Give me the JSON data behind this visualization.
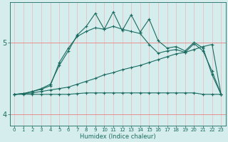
{
  "xlabel": "Humidex (Indice chaleur)",
  "xlim": [
    -0.5,
    23.5
  ],
  "ylim": [
    3.85,
    5.55
  ],
  "yticks": [
    4,
    5
  ],
  "xticks": [
    0,
    1,
    2,
    3,
    4,
    5,
    6,
    7,
    8,
    9,
    10,
    11,
    12,
    13,
    14,
    15,
    16,
    17,
    18,
    19,
    20,
    21,
    22,
    23
  ],
  "bg_color": "#d6eded",
  "line_color": "#1a6b60",
  "series": {
    "line_flat1_x": [
      0,
      1,
      2,
      3,
      4,
      5,
      6,
      7,
      8,
      9,
      10,
      11,
      12,
      13,
      14,
      15,
      16,
      17,
      18,
      19,
      20,
      21,
      22,
      23
    ],
    "line_flat1_y": [
      4.28,
      4.28,
      4.28,
      4.28,
      4.28,
      4.28,
      4.28,
      4.29,
      4.3,
      4.3,
      4.3,
      4.3,
      4.3,
      4.3,
      4.3,
      4.3,
      4.3,
      4.3,
      4.3,
      4.3,
      4.3,
      4.28,
      4.28,
      4.28
    ],
    "line_flat2_x": [
      0,
      1,
      2,
      3,
      4,
      5,
      6,
      7,
      8,
      9,
      10,
      11,
      12,
      13,
      14,
      15,
      16,
      17,
      18,
      19,
      20,
      21,
      22,
      23
    ],
    "line_flat2_y": [
      4.28,
      4.29,
      4.3,
      4.32,
      4.34,
      4.36,
      4.38,
      4.42,
      4.46,
      4.5,
      4.55,
      4.58,
      4.62,
      4.65,
      4.68,
      4.72,
      4.76,
      4.8,
      4.84,
      4.86,
      4.9,
      4.94,
      4.97,
      4.28
    ],
    "line_mid_x": [
      0,
      1,
      2,
      3,
      4,
      5,
      6,
      7,
      8,
      9,
      10,
      11,
      12,
      13,
      14,
      15,
      16,
      17,
      18,
      19,
      20,
      21,
      22,
      23
    ],
    "line_mid_y": [
      4.28,
      4.29,
      4.32,
      4.35,
      4.4,
      4.72,
      4.92,
      5.08,
      5.15,
      5.2,
      5.18,
      5.22,
      5.18,
      5.15,
      5.12,
      4.97,
      4.85,
      4.88,
      4.9,
      4.86,
      4.98,
      4.88,
      4.6,
      4.28
    ],
    "line_spike_x": [
      0,
      1,
      2,
      3,
      4,
      5,
      6,
      7,
      8,
      9,
      10,
      11,
      12,
      13,
      14,
      15,
      16,
      17,
      18,
      19,
      20,
      21,
      22,
      23
    ],
    "line_spike_y": [
      4.28,
      4.29,
      4.32,
      4.36,
      4.42,
      4.68,
      4.88,
      5.1,
      5.22,
      5.4,
      5.18,
      5.42,
      5.16,
      5.38,
      5.14,
      5.32,
      5.02,
      4.92,
      4.94,
      4.88,
      5.0,
      4.92,
      4.55,
      4.28
    ]
  }
}
